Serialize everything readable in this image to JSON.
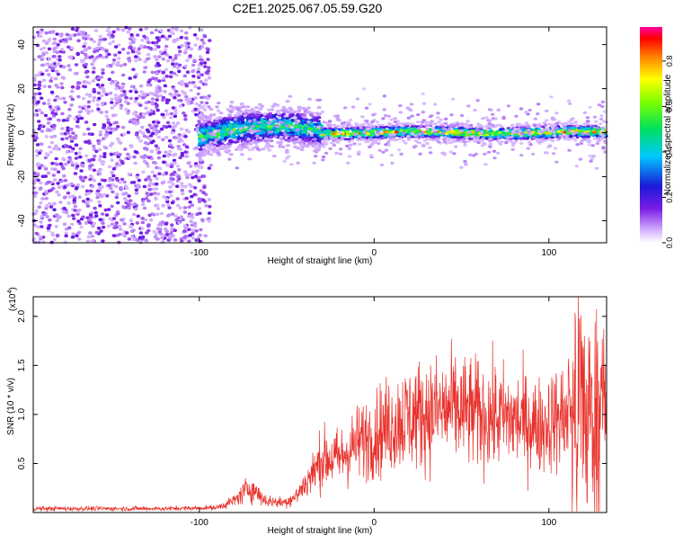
{
  "title": "C2E1.2025.067.05.59.G20",
  "chart_data": [
    {
      "type": "heatmap",
      "xlabel": "Height of straight line (km)",
      "ylabel": "Frequency (Hz)",
      "xlim": [
        -195,
        133
      ],
      "ylim": [
        -50,
        48
      ],
      "x_ticks": [
        -100,
        0,
        100
      ],
      "x_tick_labels": [
        "-100",
        "0",
        "100"
      ],
      "y_ticks": [
        -40,
        -20,
        0,
        20,
        40
      ],
      "y_tick_labels": [
        "-40",
        "-20",
        "0",
        "20",
        "40"
      ],
      "grid": false,
      "colorbar": {
        "label": "Normalized spectral amplitude",
        "range": [
          0,
          0.95
        ],
        "ticks": [
          0.0,
          0.2,
          0.4,
          0.6,
          0.8
        ],
        "tick_labels": [
          "0.0",
          "0.2",
          "0.4",
          "0.6",
          "0.8"
        ],
        "colormap_stops": [
          {
            "value": 0.0,
            "color": "#ffffff"
          },
          {
            "value": 0.05,
            "color": "#d8b8ff"
          },
          {
            "value": 0.15,
            "color": "#7a1ce6"
          },
          {
            "value": 0.25,
            "color": "#1a1ad8"
          },
          {
            "value": 0.38,
            "color": "#00c8ff"
          },
          {
            "value": 0.5,
            "color": "#00e060"
          },
          {
            "value": 0.62,
            "color": "#7fff00"
          },
          {
            "value": 0.72,
            "color": "#ffff00"
          },
          {
            "value": 0.82,
            "color": "#ff8000"
          },
          {
            "value": 0.9,
            "color": "#ff0000"
          },
          {
            "value": 0.95,
            "color": "#ff00a0"
          }
        ]
      },
      "regions": [
        {
          "x_range": [
            -195,
            -100
          ],
          "pattern": "broadband scattered noise",
          "amplitude": [
            0.05,
            0.18
          ]
        },
        {
          "x_range": [
            -100,
            -30
          ],
          "pattern": "signal band near 0 Hz",
          "center_freq": 3,
          "width_hz": 10,
          "amplitude": [
            0.2,
            0.6
          ]
        },
        {
          "x_range": [
            -30,
            133
          ],
          "pattern": "narrow line near 0 Hz",
          "center_freq": 0,
          "width_hz": 6,
          "amplitude": [
            0.3,
            0.9
          ]
        }
      ]
    },
    {
      "type": "line",
      "xlabel": "Height of straight line (km)",
      "ylabel": "SNR (10 * v/v)",
      "y_multiplier_label": "(x10",
      "y_multiplier_exp": "4",
      "y_multiplier_close": ")",
      "xlim": [
        -195,
        133
      ],
      "ylim": [
        0,
        2.2
      ],
      "x_ticks": [
        -100,
        0,
        100
      ],
      "x_tick_labels": [
        "-100",
        "0",
        "100"
      ],
      "y_ticks": [
        0.5,
        1.0,
        1.5,
        2.0
      ],
      "y_tick_labels": [
        "0.5",
        "1.0",
        "1.5",
        "2.0"
      ],
      "line_color": "#e8302a",
      "grid": false,
      "envelope": [
        {
          "x": -195,
          "y": 0.04
        },
        {
          "x": -120,
          "y": 0.04
        },
        {
          "x": -90,
          "y": 0.05
        },
        {
          "x": -80,
          "y": 0.12
        },
        {
          "x": -72,
          "y": 0.25
        },
        {
          "x": -68,
          "y": 0.22
        },
        {
          "x": -62,
          "y": 0.12
        },
        {
          "x": -52,
          "y": 0.1
        },
        {
          "x": -45,
          "y": 0.16
        },
        {
          "x": -35,
          "y": 0.4
        },
        {
          "x": -30,
          "y": 0.55
        },
        {
          "x": -20,
          "y": 0.55
        },
        {
          "x": -10,
          "y": 0.7
        },
        {
          "x": 0,
          "y": 0.8
        },
        {
          "x": 15,
          "y": 0.95
        },
        {
          "x": 25,
          "y": 1.0
        },
        {
          "x": 45,
          "y": 1.05
        },
        {
          "x": 60,
          "y": 1.0
        },
        {
          "x": 80,
          "y": 0.95
        },
        {
          "x": 95,
          "y": 0.88
        },
        {
          "x": 110,
          "y": 1.0
        },
        {
          "x": 125,
          "y": 1.0
        },
        {
          "x": 133,
          "y": 1.0
        }
      ]
    }
  ]
}
